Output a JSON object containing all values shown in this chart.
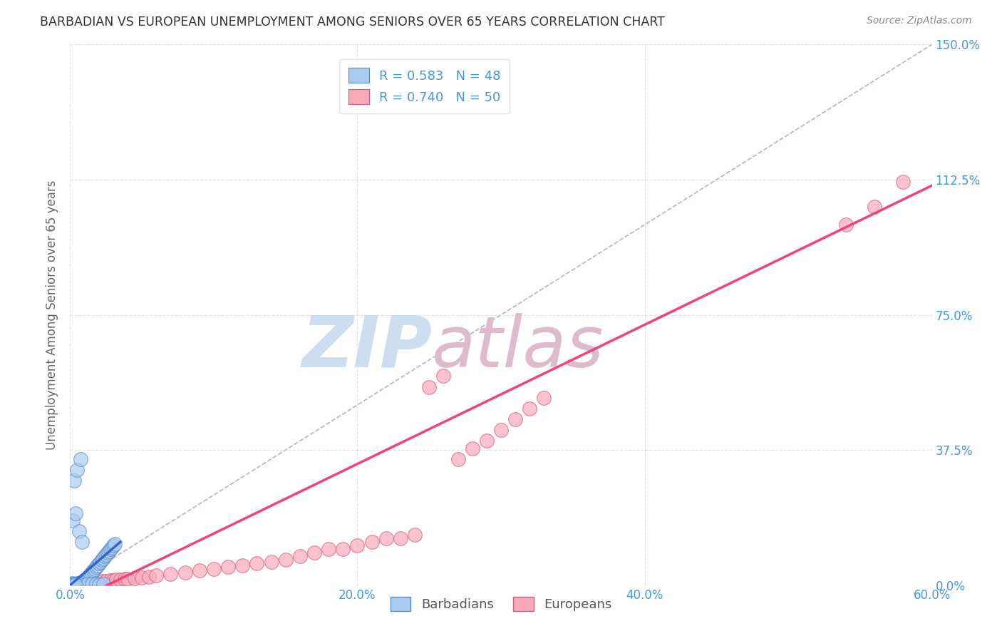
{
  "title": "BARBADIAN VS EUROPEAN UNEMPLOYMENT AMONG SENIORS OVER 65 YEARS CORRELATION CHART",
  "source": "Source: ZipAtlas.com",
  "ylabel": "Unemployment Among Seniors over 65 years",
  "x_tick_labels": [
    "0.0%",
    "20.0%",
    "40.0%",
    "60.0%"
  ],
  "y_tick_labels_right": [
    "0.0%",
    "37.5%",
    "75.0%",
    "112.5%",
    "150.0%"
  ],
  "xlim": [
    0,
    0.6
  ],
  "ylim": [
    0,
    1.5
  ],
  "x_ticks": [
    0.0,
    0.2,
    0.4,
    0.6
  ],
  "y_ticks": [
    0.0,
    0.375,
    0.75,
    1.125,
    1.5
  ],
  "barbadian_R": 0.583,
  "barbadian_N": 48,
  "european_R": 0.74,
  "european_N": 50,
  "barbadian_color": "#aaccf0",
  "barbadian_edge_color": "#5588cc",
  "european_color": "#f8aabb",
  "european_edge_color": "#dd5577",
  "barbadian_line_color": "#3366cc",
  "european_line_color": "#ee4477",
  "diagonal_color": "#aaaacc",
  "watermark_zip_color": "#ccddf0",
  "watermark_atlas_color": "#ddbbcc",
  "background_color": "#ffffff",
  "grid_color": "#cccccc",
  "title_color": "#333333",
  "tick_color": "#4499dd",
  "legend_color": "#4499dd",
  "barbadian_x": [
    0.002,
    0.003,
    0.004,
    0.005,
    0.006,
    0.007,
    0.008,
    0.009,
    0.01,
    0.011,
    0.012,
    0.013,
    0.014,
    0.015,
    0.016,
    0.017,
    0.018,
    0.019,
    0.02,
    0.021,
    0.022,
    0.023,
    0.024,
    0.025,
    0.026,
    0.027,
    0.028,
    0.029,
    0.03,
    0.031,
    0.001,
    0.003,
    0.005,
    0.007,
    0.002,
    0.004,
    0.006,
    0.008,
    0.01,
    0.012,
    0.015,
    0.018,
    0.02,
    0.023,
    0.001,
    0.002,
    0.003,
    0.004
  ],
  "barbadian_y": [
    0.005,
    0.004,
    0.003,
    0.006,
    0.005,
    0.008,
    0.01,
    0.012,
    0.015,
    0.018,
    0.02,
    0.025,
    0.03,
    0.035,
    0.04,
    0.045,
    0.05,
    0.055,
    0.06,
    0.065,
    0.07,
    0.075,
    0.08,
    0.085,
    0.09,
    0.095,
    0.1,
    0.105,
    0.11,
    0.115,
    0.003,
    0.29,
    0.32,
    0.35,
    0.18,
    0.2,
    0.15,
    0.12,
    0.002,
    0.003,
    0.004,
    0.003,
    0.002,
    0.003,
    0.002,
    0.001,
    0.002,
    0.001
  ],
  "european_x": [
    0.003,
    0.005,
    0.008,
    0.01,
    0.012,
    0.015,
    0.018,
    0.02,
    0.022,
    0.025,
    0.028,
    0.03,
    0.032,
    0.035,
    0.038,
    0.04,
    0.045,
    0.05,
    0.055,
    0.06,
    0.07,
    0.08,
    0.09,
    0.1,
    0.11,
    0.12,
    0.13,
    0.14,
    0.15,
    0.16,
    0.17,
    0.18,
    0.19,
    0.2,
    0.21,
    0.22,
    0.23,
    0.24,
    0.25,
    0.26,
    0.27,
    0.28,
    0.29,
    0.3,
    0.31,
    0.32,
    0.33,
    0.54,
    0.56,
    0.58
  ],
  "european_y": [
    0.003,
    0.004,
    0.005,
    0.006,
    0.007,
    0.008,
    0.009,
    0.01,
    0.011,
    0.012,
    0.013,
    0.014,
    0.015,
    0.016,
    0.017,
    0.018,
    0.02,
    0.022,
    0.024,
    0.026,
    0.03,
    0.035,
    0.04,
    0.045,
    0.05,
    0.055,
    0.06,
    0.065,
    0.07,
    0.08,
    0.09,
    0.1,
    0.1,
    0.11,
    0.12,
    0.13,
    0.13,
    0.14,
    0.55,
    0.58,
    0.35,
    0.38,
    0.4,
    0.43,
    0.46,
    0.49,
    0.52,
    1.0,
    1.05,
    1.12
  ],
  "marker_size": 200,
  "marker_alpha": 0.7
}
